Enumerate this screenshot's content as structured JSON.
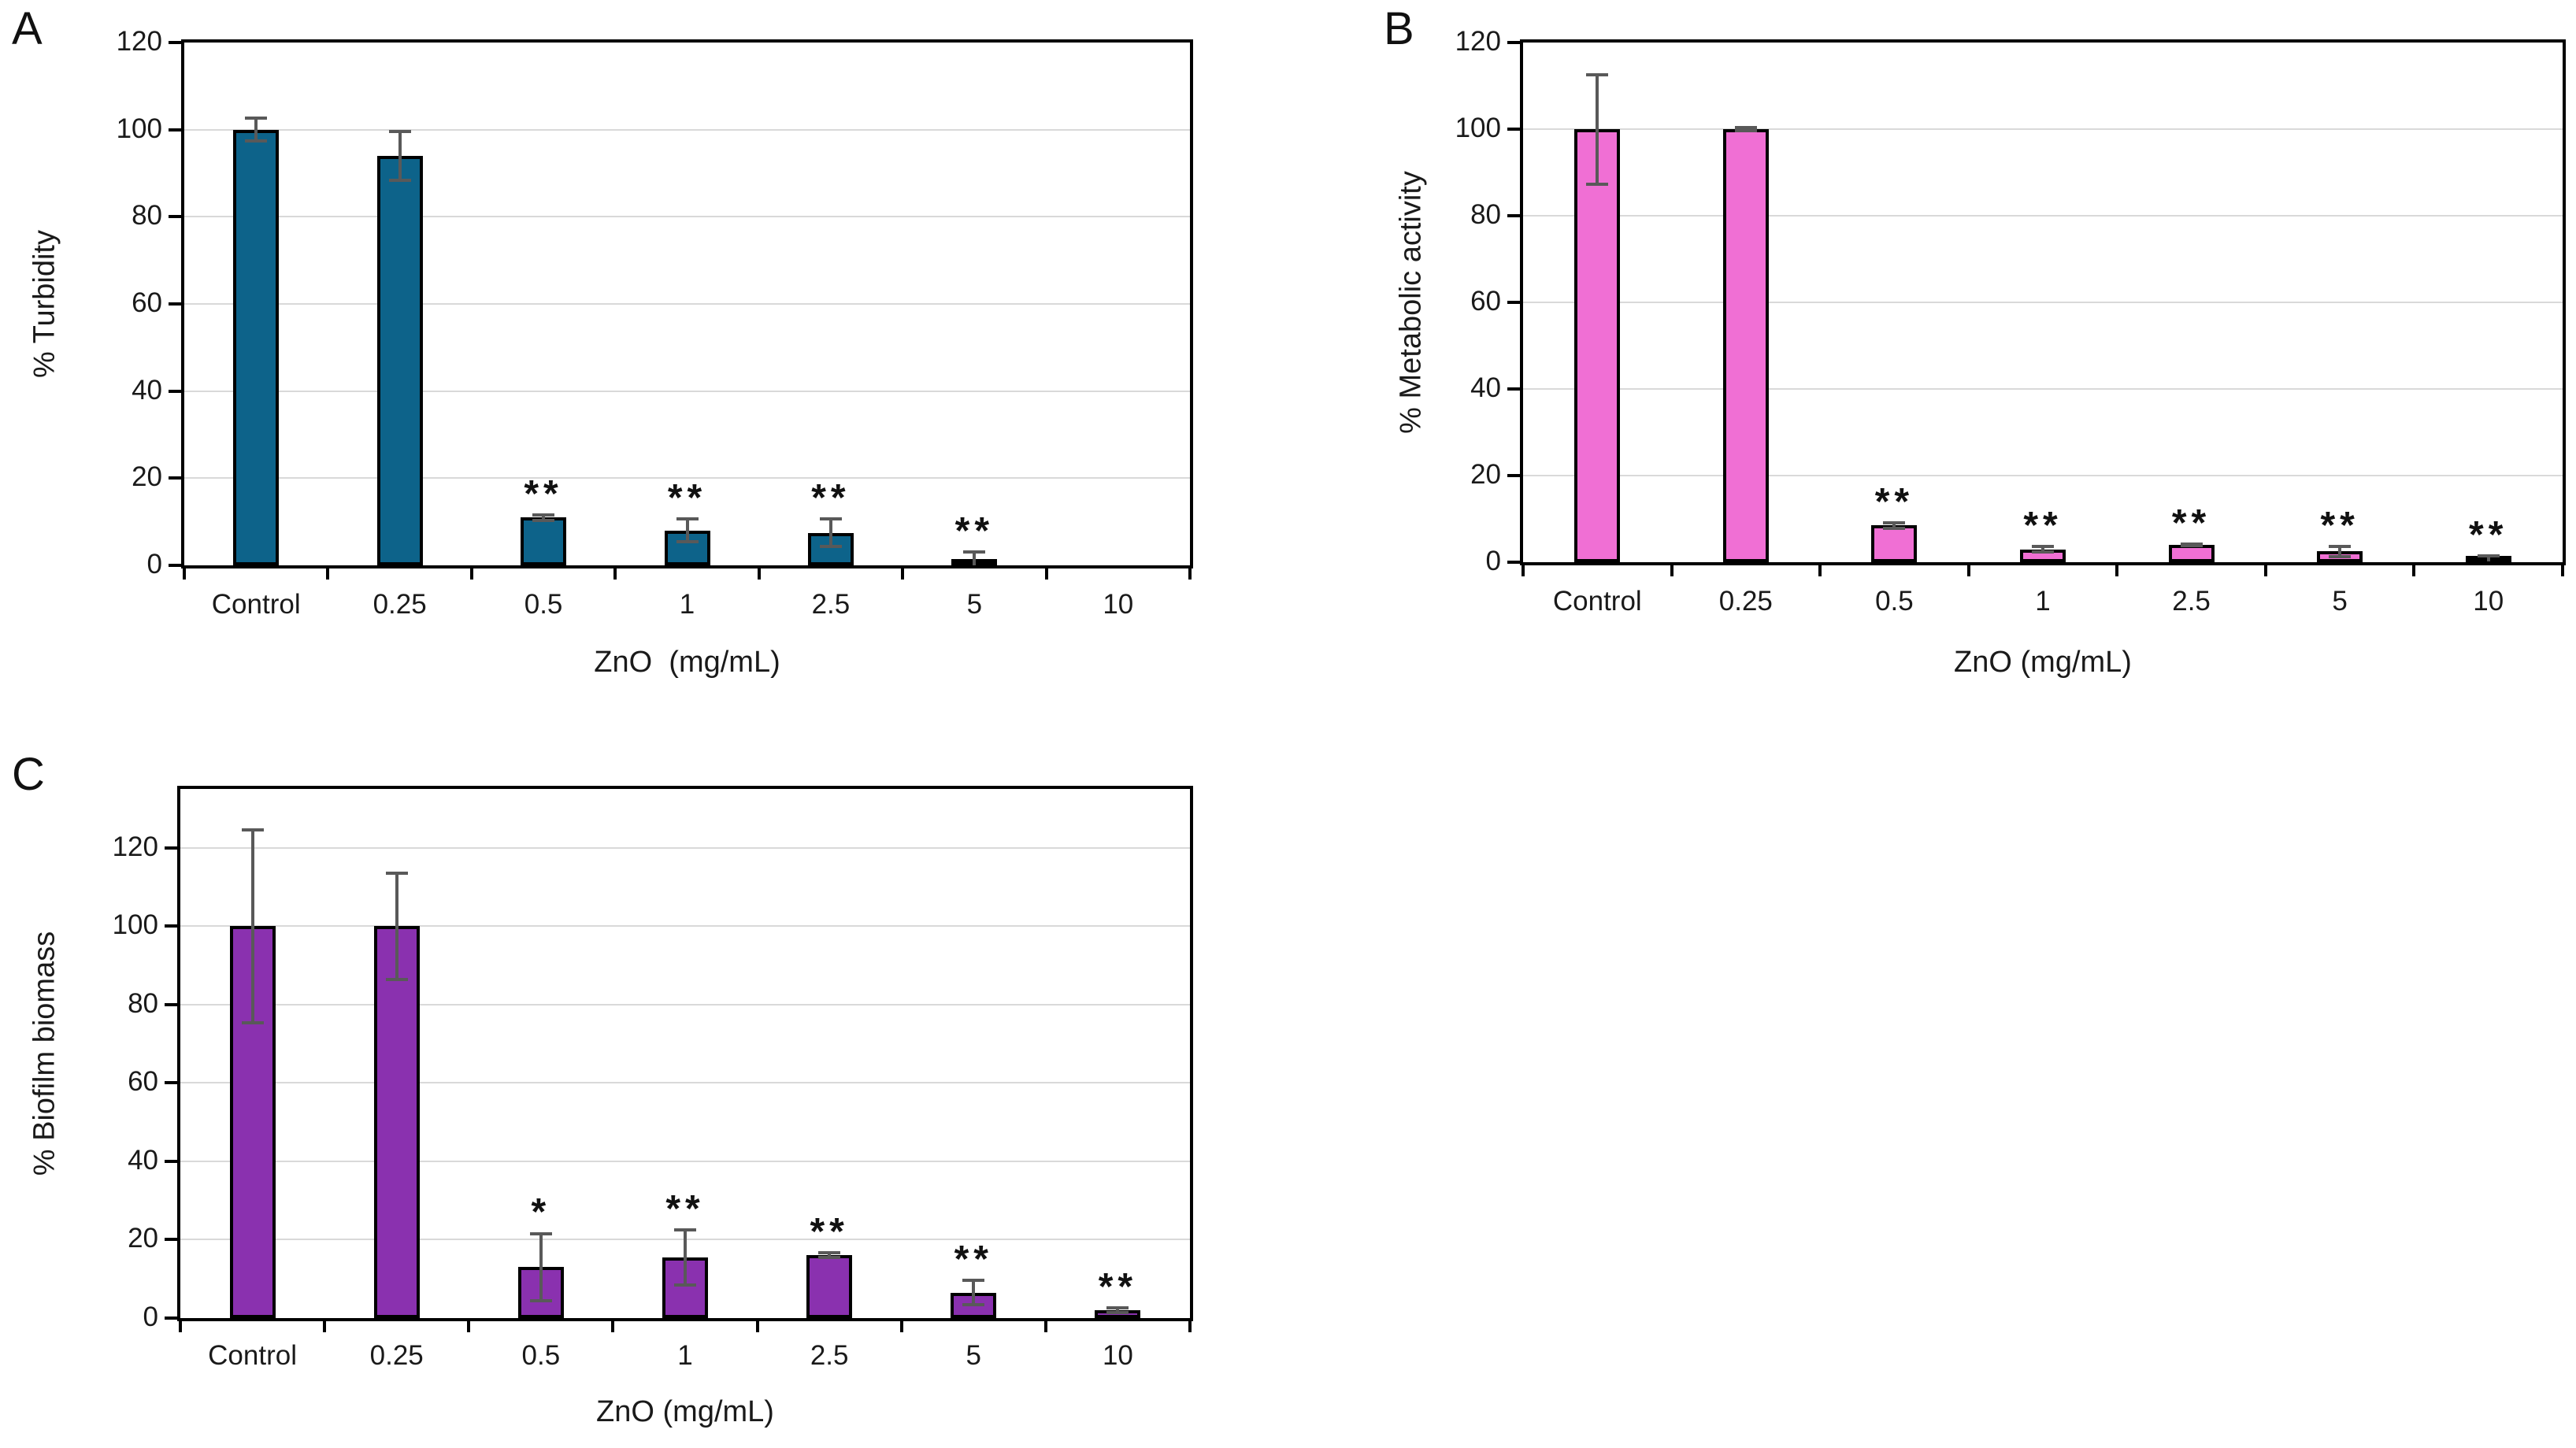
{
  "figure": {
    "background": "#ffffff",
    "panel_letters": [
      "A",
      "B",
      "C"
    ]
  },
  "styles": {
    "error_bar_color": "#595959",
    "gridline_color": "#D9D9D9",
    "axis_color": "#000000",
    "text_color": "#1a1a1a"
  },
  "chart_data": [
    {
      "type": "bar",
      "panel_label": "A",
      "title": "",
      "ylabel": "% Turbidity",
      "xlabel": "ZnO  (mg/mL)",
      "categories": [
        "Control",
        "0.25",
        "0.5",
        "1",
        "2.5",
        "5",
        "10"
      ],
      "values": [
        100,
        94,
        11,
        8,
        7.5,
        1,
        0
      ],
      "errors": [
        3,
        6,
        1,
        3,
        3.5,
        2.5,
        0
      ],
      "significance": [
        "",
        "",
        "**",
        "**",
        "**",
        "**",
        ""
      ],
      "bar_color": "#0D638A",
      "ylim": [
        0,
        120
      ],
      "yticks": [
        0,
        20,
        40,
        60,
        80,
        100,
        120
      ],
      "grid": true,
      "legend": false
    },
    {
      "type": "bar",
      "panel_label": "B",
      "title": "",
      "ylabel": "% Metabolic activity",
      "xlabel": "ZnO (mg/mL)",
      "categories": [
        "Control",
        "0.25",
        "0.5",
        "1",
        "2.5",
        "5",
        "10"
      ],
      "values": [
        100,
        100,
        8.5,
        3,
        4,
        2.5,
        1
      ],
      "errors": [
        13,
        0.8,
        1,
        1,
        0.6,
        1.5,
        0.8
      ],
      "significance": [
        "",
        "",
        "**",
        "**",
        "**",
        "**",
        "**"
      ],
      "bar_color": "#F06FD4",
      "ylim": [
        0,
        120
      ],
      "yticks": [
        0,
        20,
        40,
        60,
        80,
        100,
        120
      ],
      "grid": true,
      "legend": false
    },
    {
      "type": "bar",
      "panel_label": "C",
      "title": "",
      "ylabel": "% Biofilm biomass",
      "xlabel": "ZnO (mg/mL)",
      "categories": [
        "Control",
        "0.25",
        "0.5",
        "1",
        "2.5",
        "5",
        "10"
      ],
      "values": [
        100,
        100,
        13,
        15.5,
        16,
        6.5,
        2
      ],
      "errors": [
        25,
        14,
        9,
        7.5,
        1,
        3.5,
        1
      ],
      "significance": [
        "",
        "",
        "*",
        "**",
        "**",
        "**",
        "**"
      ],
      "bar_color": "#8A31AF",
      "ylim": [
        0,
        135
      ],
      "yticks": [
        0,
        20,
        40,
        60,
        80,
        100,
        120
      ],
      "grid": true,
      "legend": false
    }
  ]
}
